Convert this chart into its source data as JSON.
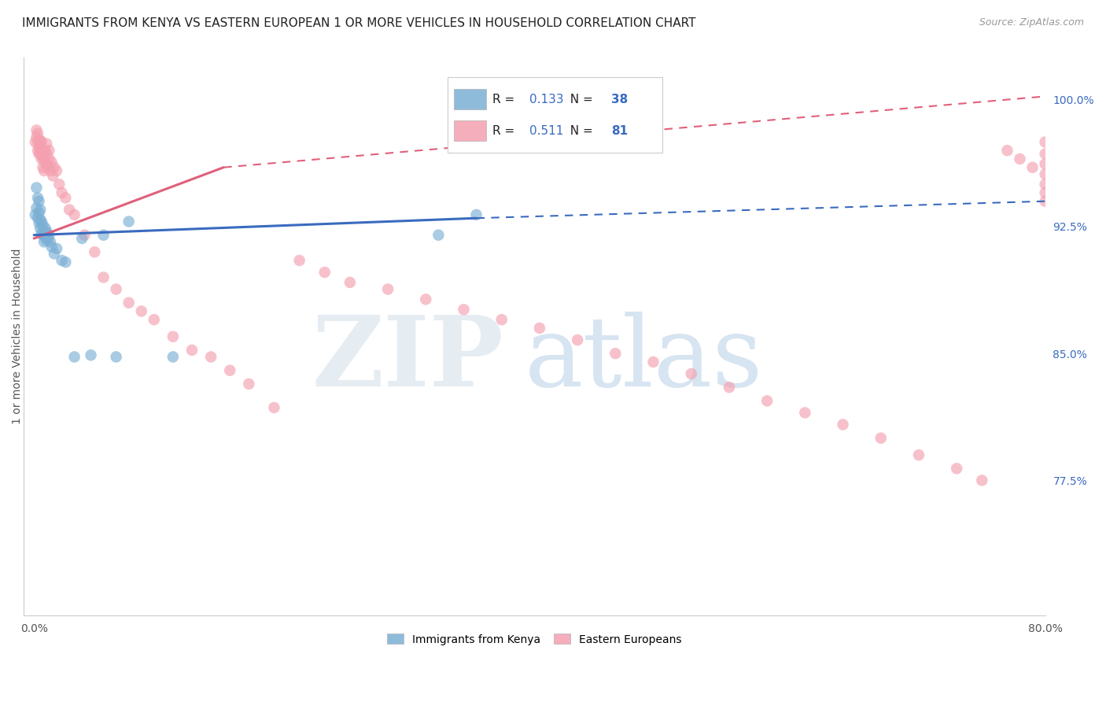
{
  "title": "IMMIGRANTS FROM KENYA VS EASTERN EUROPEAN 1 OR MORE VEHICLES IN HOUSEHOLD CORRELATION CHART",
  "source": "Source: ZipAtlas.com",
  "ylabel": "1 or more Vehicles in Household",
  "kenya_R": 0.133,
  "kenya_N": 38,
  "eastern_R": 0.511,
  "eastern_N": 81,
  "kenya_color": "#7bafd4",
  "eastern_color": "#f4a0b0",
  "line_blue": "#3a6bbf",
  "line_pink": "#e0607a",
  "xlim_min": -0.008,
  "xlim_max": 0.8,
  "ylim_min": 0.695,
  "ylim_max": 1.025,
  "xtick_positions": [
    0.0,
    0.1,
    0.2,
    0.3,
    0.4,
    0.5,
    0.6,
    0.7,
    0.8
  ],
  "xtick_labels": [
    "0.0%",
    "",
    "",
    "",
    "",
    "",
    "",
    "",
    "80.0%"
  ],
  "ytick_right_positions": [
    1.0,
    0.925,
    0.85,
    0.775
  ],
  "ytick_right_labels": [
    "100.0%",
    "92.5%",
    "85.0%",
    "77.5%"
  ],
  "grid_color": "#cccccc",
  "bg_color": "#ffffff",
  "kenya_scatter_x": [
    0.001,
    0.002,
    0.002,
    0.003,
    0.003,
    0.004,
    0.004,
    0.004,
    0.005,
    0.005,
    0.005,
    0.006,
    0.006,
    0.007,
    0.007,
    0.008,
    0.008,
    0.009,
    0.009,
    0.01,
    0.01,
    0.011,
    0.012,
    0.013,
    0.014,
    0.016,
    0.018,
    0.022,
    0.025,
    0.032,
    0.038,
    0.045,
    0.055,
    0.065,
    0.075,
    0.11,
    0.32,
    0.35
  ],
  "kenya_scatter_y": [
    0.932,
    0.936,
    0.948,
    0.93,
    0.942,
    0.927,
    0.933,
    0.94,
    0.924,
    0.929,
    0.935,
    0.921,
    0.928,
    0.92,
    0.926,
    0.922,
    0.916,
    0.919,
    0.924,
    0.917,
    0.922,
    0.918,
    0.92,
    0.916,
    0.913,
    0.909,
    0.912,
    0.905,
    0.904,
    0.848,
    0.918,
    0.849,
    0.92,
    0.848,
    0.928,
    0.848,
    0.92,
    0.932
  ],
  "eastern_scatter_x": [
    0.001,
    0.002,
    0.002,
    0.003,
    0.003,
    0.003,
    0.004,
    0.004,
    0.004,
    0.005,
    0.005,
    0.005,
    0.006,
    0.006,
    0.006,
    0.007,
    0.007,
    0.007,
    0.008,
    0.008,
    0.009,
    0.009,
    0.01,
    0.01,
    0.01,
    0.011,
    0.012,
    0.012,
    0.013,
    0.014,
    0.015,
    0.016,
    0.018,
    0.02,
    0.022,
    0.025,
    0.028,
    0.032,
    0.04,
    0.048,
    0.055,
    0.065,
    0.075,
    0.085,
    0.095,
    0.11,
    0.125,
    0.14,
    0.155,
    0.17,
    0.19,
    0.21,
    0.23,
    0.25,
    0.28,
    0.31,
    0.34,
    0.37,
    0.4,
    0.43,
    0.46,
    0.49,
    0.52,
    0.55,
    0.58,
    0.61,
    0.64,
    0.67,
    0.7,
    0.73,
    0.75,
    0.77,
    0.78,
    0.79,
    0.8,
    0.8,
    0.8,
    0.8,
    0.8,
    0.8,
    0.8
  ],
  "eastern_scatter_y": [
    0.975,
    0.978,
    0.982,
    0.97,
    0.975,
    0.98,
    0.972,
    0.968,
    0.976,
    0.972,
    0.968,
    0.976,
    0.97,
    0.965,
    0.975,
    0.966,
    0.96,
    0.97,
    0.965,
    0.958,
    0.963,
    0.97,
    0.962,
    0.968,
    0.974,
    0.96,
    0.965,
    0.97,
    0.958,
    0.963,
    0.955,
    0.96,
    0.958,
    0.95,
    0.945,
    0.942,
    0.935,
    0.932,
    0.92,
    0.91,
    0.895,
    0.888,
    0.88,
    0.875,
    0.87,
    0.86,
    0.852,
    0.848,
    0.84,
    0.832,
    0.818,
    0.905,
    0.898,
    0.892,
    0.888,
    0.882,
    0.876,
    0.87,
    0.865,
    0.858,
    0.85,
    0.845,
    0.838,
    0.83,
    0.822,
    0.815,
    0.808,
    0.8,
    0.79,
    0.782,
    0.775,
    0.97,
    0.965,
    0.96,
    0.975,
    0.968,
    0.962,
    0.956,
    0.95,
    0.945,
    0.94
  ],
  "watermark_zip": "ZIP",
  "watermark_atlas": "atlas",
  "watermark_color_zip": "#c8d8ec",
  "watermark_color_atlas": "#a8c8e8",
  "title_fontsize": 11,
  "source_fontsize": 9
}
